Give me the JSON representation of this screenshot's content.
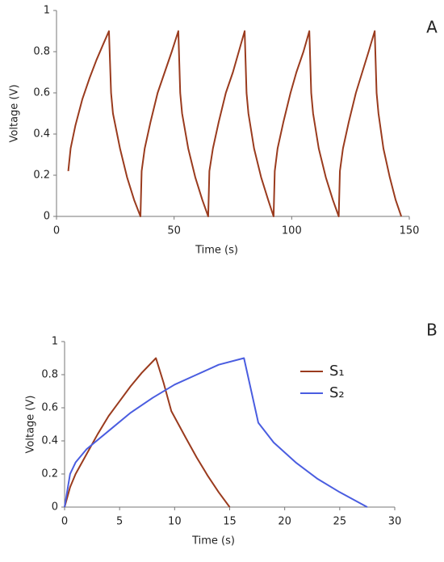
{
  "chart_data": [
    {
      "type": "line",
      "label": "A",
      "xlabel": "Time (s)",
      "ylabel": "Voltage (V)",
      "xlim": [
        0,
        150
      ],
      "ylim": [
        0,
        1
      ],
      "xticks": [
        0,
        50,
        100,
        150
      ],
      "yticks": [
        0,
        0.2,
        0.4,
        0.6,
        0.8,
        1
      ],
      "series": [
        {
          "color": "#9a3b1e",
          "x": [
            5,
            6,
            8,
            11,
            14,
            17,
            20,
            22.3,
            23.2,
            24,
            27,
            30,
            33,
            35.7,
            36.2,
            37.5,
            40,
            43,
            46,
            49,
            51.8,
            52.6,
            53.4,
            56,
            59,
            62,
            64.5,
            65,
            66.5,
            69,
            72,
            75,
            77.5,
            80,
            80.8,
            81.6,
            84,
            87,
            90,
            92.3,
            92.8,
            94,
            96.5,
            99.5,
            102,
            105,
            107.5,
            108.3,
            109.1,
            111.5,
            114.5,
            117.5,
            120,
            120.5,
            121.8,
            124.3,
            127.3,
            130,
            132.7,
            135.3,
            136.1,
            136.9,
            139,
            141.7,
            144.2,
            146.6
          ],
          "values": [
            0.22,
            0.33,
            0.44,
            0.57,
            0.67,
            0.76,
            0.84,
            0.9,
            0.6,
            0.5,
            0.33,
            0.19,
            0.08,
            0,
            0.22,
            0.33,
            0.46,
            0.6,
            0.7,
            0.8,
            0.9,
            0.6,
            0.5,
            0.33,
            0.19,
            0.08,
            0,
            0.22,
            0.33,
            0.46,
            0.6,
            0.7,
            0.8,
            0.9,
            0.6,
            0.5,
            0.33,
            0.19,
            0.08,
            0,
            0.22,
            0.33,
            0.46,
            0.6,
            0.7,
            0.8,
            0.9,
            0.6,
            0.5,
            0.33,
            0.19,
            0.08,
            0,
            0.22,
            0.33,
            0.46,
            0.6,
            0.7,
            0.8,
            0.9,
            0.6,
            0.5,
            0.33,
            0.19,
            0.08,
            0
          ]
        }
      ]
    },
    {
      "type": "line",
      "label": "B",
      "xlabel": "Time (s)",
      "ylabel": "Voltage (V)",
      "xlim": [
        0,
        30
      ],
      "ylim": [
        0,
        1
      ],
      "xticks": [
        0,
        5,
        10,
        15,
        20,
        25,
        30
      ],
      "yticks": [
        0,
        0.2,
        0.4,
        0.6,
        0.8,
        1
      ],
      "legend": "right",
      "series": [
        {
          "name": "S₁",
          "color": "#9a3b1e",
          "x": [
            0,
            0.5,
            1,
            2,
            3,
            4,
            5,
            6,
            7,
            8.3,
            9,
            9.7,
            11,
            12,
            13,
            14,
            15
          ],
          "values": [
            0,
            0.12,
            0.2,
            0.32,
            0.44,
            0.55,
            0.64,
            0.73,
            0.81,
            0.9,
            0.75,
            0.58,
            0.42,
            0.3,
            0.19,
            0.09,
            0
          ]
        },
        {
          "name": "S₂",
          "color": "#4a5de0",
          "x": [
            0,
            0.5,
            1,
            2,
            4,
            6,
            8,
            10,
            12,
            14,
            16.3,
            17.6,
            19,
            21,
            23,
            25,
            27.5
          ],
          "values": [
            0,
            0.2,
            0.27,
            0.35,
            0.46,
            0.57,
            0.66,
            0.74,
            0.8,
            0.86,
            0.9,
            0.51,
            0.39,
            0.27,
            0.17,
            0.09,
            0
          ]
        }
      ]
    }
  ]
}
